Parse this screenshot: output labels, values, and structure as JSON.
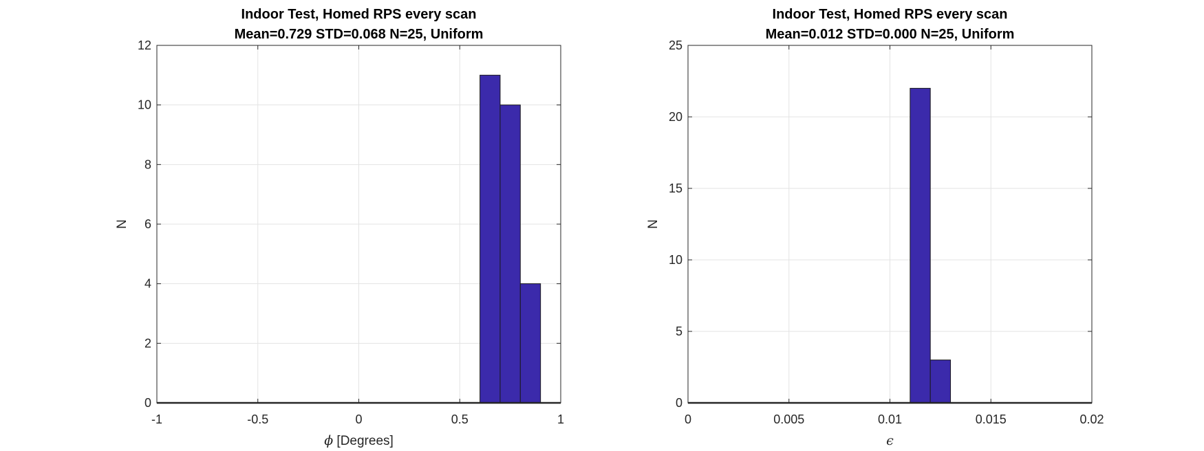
{
  "chart_data": [
    {
      "type": "bar",
      "title": "Indoor Test, Homed RPS every scan",
      "subtitle": "Mean=0.729 STD=0.068 N=25, Uniform",
      "xlabel_symbol": "ϕ",
      "xlabel_text": " [Degrees]",
      "ylabel": "N",
      "xlim": [
        -1,
        1
      ],
      "ylim": [
        0,
        12
      ],
      "xticks": [
        -1,
        -0.5,
        0,
        0.5,
        1
      ],
      "xtick_labels": [
        "-1",
        "-0.5",
        "0",
        "0.5",
        "1"
      ],
      "yticks": [
        0,
        2,
        4,
        6,
        8,
        10,
        12
      ],
      "ytick_labels": [
        "0",
        "2",
        "4",
        "6",
        "8",
        "10",
        "12"
      ],
      "grid": true,
      "bin_edges": [
        -1,
        -0.9,
        -0.8,
        -0.7,
        -0.6,
        -0.5,
        -0.4,
        -0.3,
        -0.2,
        -0.1,
        0,
        0.1,
        0.2,
        0.3,
        0.4,
        0.5,
        0.6,
        0.7,
        0.8,
        0.9,
        1
      ],
      "counts": [
        0,
        0,
        0,
        0,
        0,
        0,
        0,
        0,
        0,
        0,
        0,
        0,
        0,
        0,
        0,
        0,
        11,
        10,
        4,
        0
      ],
      "bar_color": "#3b2aab"
    },
    {
      "type": "bar",
      "title": "Indoor Test, Homed RPS every scan",
      "subtitle": "Mean=0.012 STD=0.000 N=25, Uniform",
      "xlabel_symbol": "ϵ",
      "xlabel_text": "",
      "ylabel": "N",
      "xlim": [
        0,
        0.02
      ],
      "ylim": [
        0,
        25
      ],
      "xticks": [
        0,
        0.005,
        0.01,
        0.015,
        0.02
      ],
      "xtick_labels": [
        "0",
        "0.005",
        "0.01",
        "0.015",
        "0.02"
      ],
      "yticks": [
        0,
        5,
        10,
        15,
        20,
        25
      ],
      "ytick_labels": [
        "0",
        "5",
        "10",
        "15",
        "20",
        "25"
      ],
      "grid": true,
      "bin_edges": [
        0,
        0.001,
        0.002,
        0.003,
        0.004,
        0.005,
        0.006,
        0.007,
        0.008,
        0.009,
        0.01,
        0.011,
        0.012,
        0.013,
        0.014,
        0.015,
        0.016,
        0.017,
        0.018,
        0.019,
        0.02
      ],
      "counts": [
        0,
        0,
        0,
        0,
        0,
        0,
        0,
        0,
        0,
        0,
        0,
        22,
        3,
        0,
        0,
        0,
        0,
        0,
        0,
        0
      ],
      "bar_color": "#3b2aab"
    }
  ]
}
